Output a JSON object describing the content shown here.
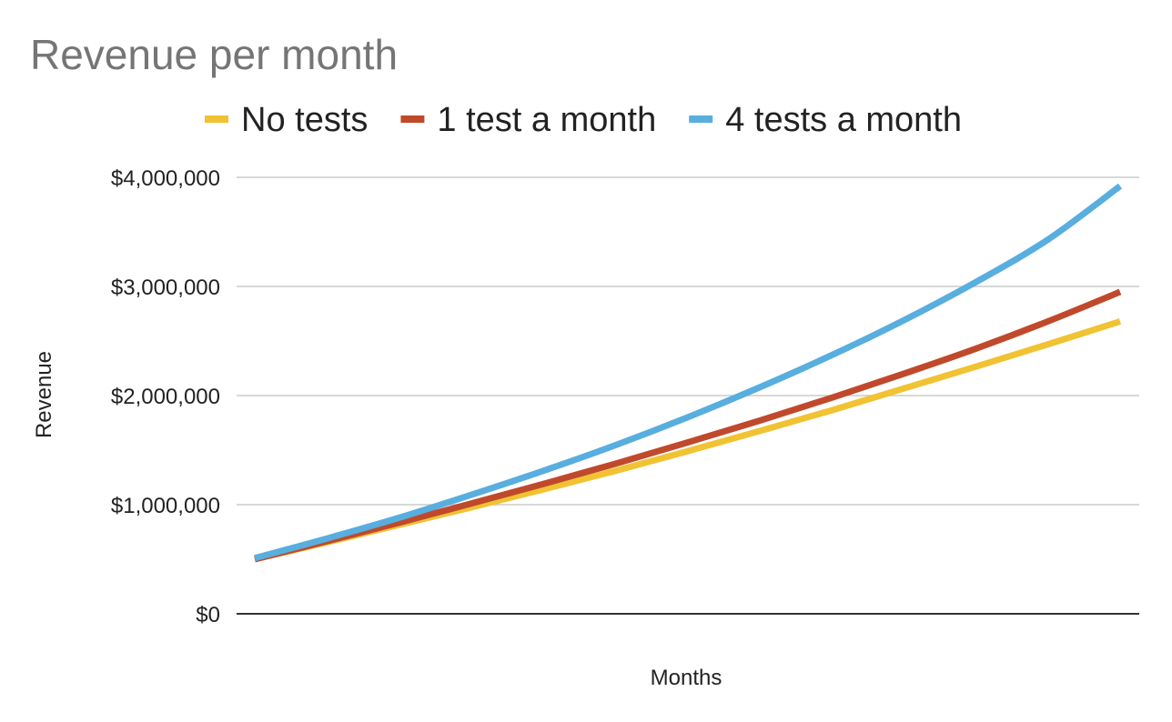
{
  "chart_data": {
    "type": "line",
    "title": "Revenue per month",
    "xlabel": "Months",
    "ylabel": "Revenue",
    "ylim": [
      0,
      4000000
    ],
    "yticks": [
      0,
      1000000,
      2000000,
      3000000,
      4000000
    ],
    "ytick_labels": [
      "$0",
      "$1,000,000",
      "$2,000,000",
      "$3,000,000",
      "$4,000,000"
    ],
    "grid": true,
    "legend_position": "top",
    "x": [
      0,
      1,
      2,
      3,
      4,
      5,
      6,
      7,
      8,
      9,
      10,
      11,
      12
    ],
    "series": [
      {
        "name": "No tests",
        "color": "#f1c232",
        "values": [
          500000,
          655000,
          815000,
          975000,
          1140000,
          1310000,
          1490000,
          1675000,
          1865000,
          2065000,
          2265000,
          2470000,
          2680000
        ]
      },
      {
        "name": "1 test a month",
        "color": "#c0492c",
        "values": [
          500000,
          665000,
          835000,
          1010000,
          1190000,
          1375000,
          1570000,
          1770000,
          1980000,
          2200000,
          2430000,
          2680000,
          2950000
        ]
      },
      {
        "name": "4 tests a month",
        "color": "#58aede",
        "values": [
          510000,
          690000,
          880000,
          1090000,
          1310000,
          1545000,
          1800000,
          2075000,
          2370000,
          2690000,
          3040000,
          3430000,
          3920000
        ]
      }
    ]
  }
}
